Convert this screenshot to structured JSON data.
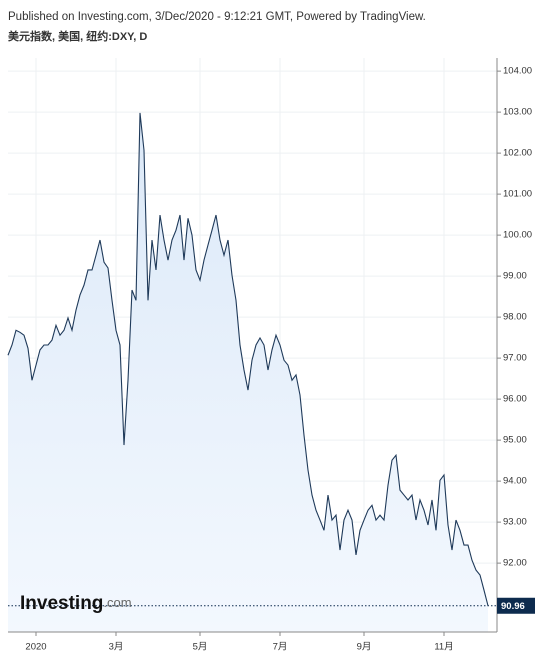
{
  "header": {
    "published": "Published on Investing.com, 3/Dec/2020 - 9:12:21 GMT, Powered by TradingView.",
    "symbol": "美元指数, 美国, 纽约:DXY, D"
  },
  "watermark": {
    "brand": "Investing",
    "suffix": ".com"
  },
  "chart_data": {
    "type": "area",
    "color": "#1f3a5a",
    "fill": "#dce9f8",
    "grid": true,
    "categories": [
      null,
      null,
      null,
      null,
      null,
      null,
      null,
      "2020",
      null,
      null,
      null,
      null,
      null,
      null,
      null,
      null,
      null,
      null,
      null,
      null,
      null,
      null,
      null,
      null,
      null,
      null,
      null,
      "3月",
      null,
      null,
      null,
      null,
      null,
      null,
      null,
      null,
      null,
      null,
      null,
      null,
      null,
      null,
      null,
      null,
      null,
      null,
      null,
      null,
      "5月",
      null,
      null,
      null,
      null,
      null,
      null,
      null,
      null,
      null,
      null,
      null,
      null,
      null,
      null,
      null,
      null,
      null,
      null,
      null,
      "7月",
      null,
      null,
      null,
      null,
      null,
      null,
      null,
      null,
      null,
      null,
      null,
      null,
      null,
      null,
      null,
      null,
      null,
      null,
      null,
      null,
      "9月",
      null,
      null,
      null,
      null,
      null,
      null,
      null,
      null,
      null,
      null,
      null,
      null,
      null,
      null,
      null,
      null,
      null,
      null,
      null,
      "11月",
      null,
      null,
      null,
      null,
      null,
      null,
      null,
      null,
      null,
      null,
      null
    ],
    "values": [
      97.07,
      97.32,
      97.68,
      97.63,
      97.56,
      97.24,
      96.46,
      96.83,
      97.2,
      97.32,
      97.32,
      97.44,
      97.8,
      97.56,
      97.68,
      97.98,
      97.68,
      98.17,
      98.54,
      98.78,
      99.15,
      99.15,
      99.51,
      99.88,
      99.34,
      99.2,
      98.41,
      97.68,
      97.32,
      94.88,
      96.46,
      98.66,
      98.41,
      102.98,
      102.07,
      98.41,
      99.88,
      99.15,
      100.49,
      99.88,
      99.39,
      99.88,
      100.12,
      100.49,
      99.39,
      100.41,
      100.0,
      99.15,
      98.9,
      99.39,
      99.76,
      100.12,
      100.49,
      99.88,
      99.51,
      99.88,
      99.02,
      98.41,
      97.32,
      96.71,
      96.22,
      96.95,
      97.32,
      97.49,
      97.32,
      96.71,
      97.2,
      97.56,
      97.32,
      96.95,
      96.83,
      96.46,
      96.59,
      96.1,
      95.12,
      94.27,
      93.66,
      93.29,
      93.05,
      92.8,
      93.66,
      93.05,
      93.17,
      92.32,
      93.05,
      93.29,
      93.05,
      92.2,
      92.8,
      93.05,
      93.29,
      93.41,
      93.05,
      93.17,
      93.05,
      93.9,
      94.51,
      94.63,
      93.78,
      93.66,
      93.54,
      93.66,
      93.05,
      93.54,
      93.29,
      92.93,
      93.54,
      92.8,
      94.02,
      94.15,
      92.93,
      92.32,
      93.05,
      92.8,
      92.44,
      92.44,
      92.07,
      91.83,
      91.71,
      91.34,
      90.96
    ],
    "ylim": [
      90.32,
      104.32
    ],
    "yticks": [
      {
        "value": 92,
        "label": "92.00"
      },
      {
        "value": 93,
        "label": "93.00"
      },
      {
        "value": 94,
        "label": "94.00"
      },
      {
        "value": 95,
        "label": "95.00"
      },
      {
        "value": 96,
        "label": "96.00"
      },
      {
        "value": 97,
        "label": "97.00"
      },
      {
        "value": 98,
        "label": "98.00"
      },
      {
        "value": 99,
        "label": "99.00"
      },
      {
        "value": 100,
        "label": "100.00"
      },
      {
        "value": 101,
        "label": "101.00"
      },
      {
        "value": 102,
        "label": "102.00"
      },
      {
        "value": 103,
        "label": "103.00"
      },
      {
        "value": 104,
        "label": "104.00"
      }
    ]
  }
}
